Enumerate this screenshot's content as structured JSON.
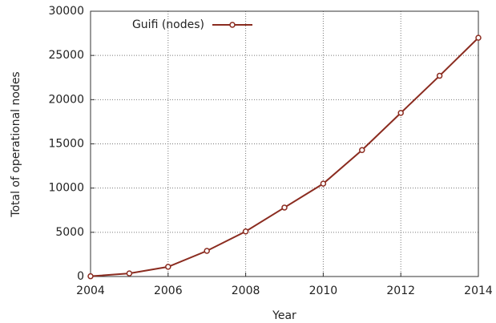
{
  "chart_data": {
    "type": "line",
    "x_label": "Year",
    "y_label": "Total of operational nodes",
    "x": [
      2004,
      2005,
      2006,
      2007,
      2008,
      2009,
      2010,
      2011,
      2012,
      2013,
      2014
    ],
    "series": [
      {
        "name": "Guifi (nodes)",
        "color": "#8b2c20",
        "values": [
          30,
          350,
          1100,
          2900,
          5100,
          7800,
          10500,
          14300,
          18500,
          22700,
          27000
        ]
      }
    ],
    "xlim": [
      2004,
      2014
    ],
    "xticks": [
      2004,
      2006,
      2008,
      2010,
      2012,
      2014
    ],
    "ylim": [
      0,
      30000
    ],
    "yticks": [
      0,
      5000,
      10000,
      15000,
      20000,
      25000,
      30000
    ],
    "grid": true,
    "legend": "upper left"
  }
}
